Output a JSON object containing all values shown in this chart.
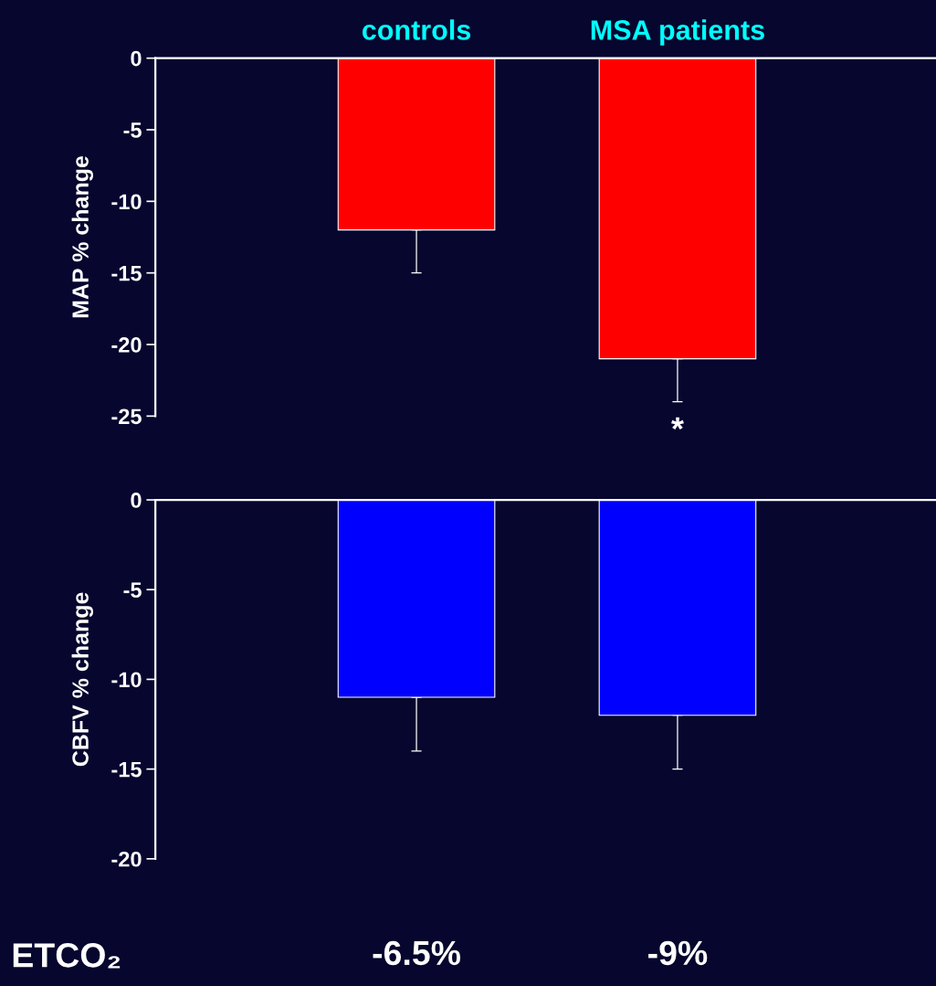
{
  "chart_data": [
    {
      "type": "bar",
      "ylabel": "MAP % change",
      "categories": [
        "controls",
        "MSA patients"
      ],
      "series": [
        {
          "color": "#ff0000",
          "values": [
            -12,
            -21
          ],
          "errors": [
            [
              -15,
              -12
            ],
            [
              -24,
              -21
            ]
          ]
        }
      ],
      "ylim": [
        -25,
        0
      ],
      "yticks": [
        0,
        -5,
        -10,
        -15,
        -20,
        -25
      ],
      "grid": false,
      "legend": false,
      "annotations": [
        "*"
      ]
    },
    {
      "type": "bar",
      "ylabel": "CBFV % change",
      "categories": [
        "-6.5%",
        "-9%"
      ],
      "series": [
        {
          "color": "#0000ff",
          "values": [
            -11,
            -12
          ],
          "errors": [
            [
              -14,
              -11
            ],
            [
              -15,
              -12
            ]
          ]
        }
      ],
      "ylim": [
        -20,
        0
      ],
      "yticks": [
        0,
        -5,
        -10,
        -15,
        -20
      ],
      "grid": false,
      "legend": false,
      "annotations": [
        "ETCO₂"
      ]
    }
  ]
}
